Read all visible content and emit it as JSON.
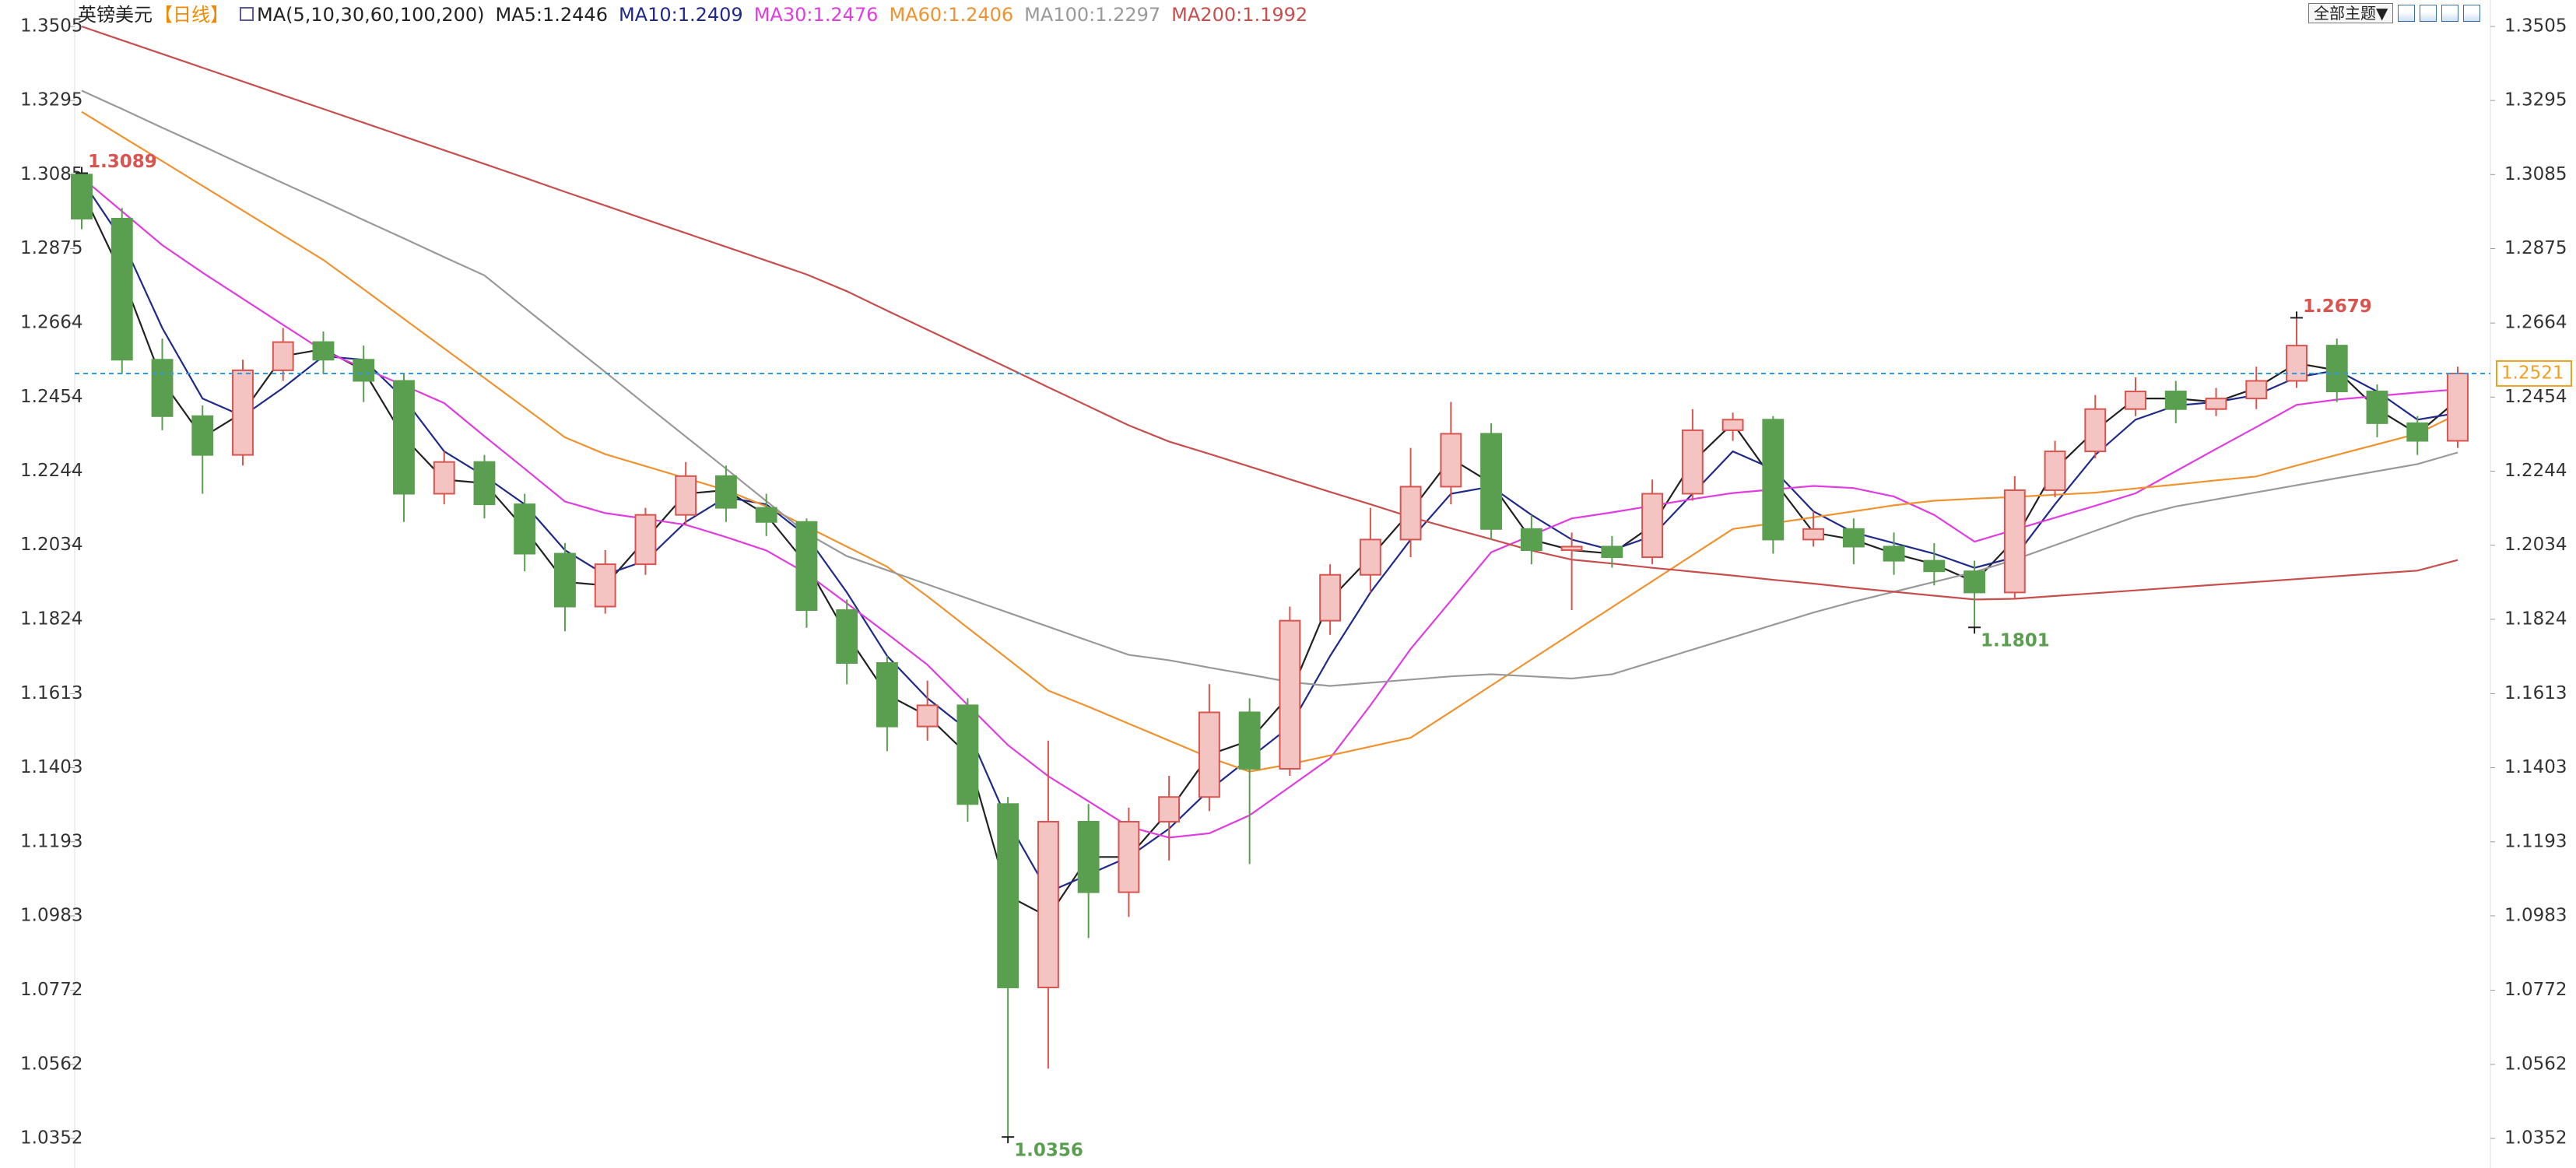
{
  "chart_data": {
    "type": "candlestick",
    "title": "英镑美元",
    "period": "【日线】",
    "ma_label": "MA(5,10,30,60,100,200)",
    "theme_button": "全部主题▼",
    "ylim": [
      1.0268,
      1.358
    ],
    "yticks": [
      1.3505,
      1.3295,
      1.3085,
      1.2875,
      1.2664,
      1.2454,
      1.2244,
      1.2034,
      1.1824,
      1.1613,
      1.1403,
      1.1193,
      1.0983,
      1.0772,
      1.0562,
      1.0352
    ],
    "up_color": "#d9534f",
    "down_color": "#5a9e4f",
    "ohlc": [
      [
        1.3085,
        1.3089,
        1.293,
        1.296
      ],
      [
        1.296,
        1.299,
        1.252,
        1.256
      ],
      [
        1.256,
        1.262,
        1.236,
        1.24
      ],
      [
        1.24,
        1.243,
        1.218,
        1.229
      ],
      [
        1.229,
        1.256,
        1.226,
        1.253
      ],
      [
        1.253,
        1.265,
        1.25,
        1.261
      ],
      [
        1.261,
        1.264,
        1.252,
        1.256
      ],
      [
        1.256,
        1.26,
        1.244,
        1.25
      ],
      [
        1.25,
        1.252,
        1.21,
        1.218
      ],
      [
        1.218,
        1.23,
        1.215,
        1.227
      ],
      [
        1.227,
        1.229,
        1.211,
        1.215
      ],
      [
        1.215,
        1.218,
        1.196,
        1.201
      ],
      [
        1.201,
        1.204,
        1.179,
        1.186
      ],
      [
        1.186,
        1.202,
        1.184,
        1.198
      ],
      [
        1.198,
        1.214,
        1.195,
        1.212
      ],
      [
        1.212,
        1.227,
        1.209,
        1.223
      ],
      [
        1.223,
        1.226,
        1.21,
        1.214
      ],
      [
        1.214,
        1.218,
        1.206,
        1.21
      ],
      [
        1.21,
        1.211,
        1.18,
        1.185
      ],
      [
        1.185,
        1.188,
        1.164,
        1.17
      ],
      [
        1.17,
        1.172,
        1.145,
        1.152
      ],
      [
        1.152,
        1.165,
        1.148,
        1.158
      ],
      [
        1.158,
        1.16,
        1.125,
        1.13
      ],
      [
        1.13,
        1.132,
        1.0356,
        1.078
      ],
      [
        1.078,
        1.148,
        1.055,
        1.125
      ],
      [
        1.125,
        1.13,
        1.092,
        1.105
      ],
      [
        1.105,
        1.129,
        1.098,
        1.125
      ],
      [
        1.125,
        1.138,
        1.114,
        1.132
      ],
      [
        1.132,
        1.164,
        1.128,
        1.156
      ],
      [
        1.156,
        1.16,
        1.113,
        1.14
      ],
      [
        1.14,
        1.186,
        1.138,
        1.182
      ],
      [
        1.182,
        1.198,
        1.178,
        1.195
      ],
      [
        1.195,
        1.214,
        1.19,
        1.205
      ],
      [
        1.205,
        1.231,
        1.2,
        1.22
      ],
      [
        1.22,
        1.244,
        1.215,
        1.235
      ],
      [
        1.235,
        1.238,
        1.205,
        1.208
      ],
      [
        1.208,
        1.212,
        1.198,
        1.202
      ],
      [
        1.202,
        1.207,
        1.185,
        1.203
      ],
      [
        1.203,
        1.206,
        1.197,
        1.2
      ],
      [
        1.2,
        1.222,
        1.198,
        1.218
      ],
      [
        1.218,
        1.242,
        1.216,
        1.236
      ],
      [
        1.236,
        1.241,
        1.233,
        1.239
      ],
      [
        1.239,
        1.24,
        1.201,
        1.205
      ],
      [
        1.205,
        1.213,
        1.203,
        1.208
      ],
      [
        1.208,
        1.211,
        1.198,
        1.203
      ],
      [
        1.203,
        1.207,
        1.195,
        1.199
      ],
      [
        1.199,
        1.204,
        1.192,
        1.196
      ],
      [
        1.196,
        1.199,
        1.1801,
        1.19
      ],
      [
        1.19,
        1.223,
        1.188,
        1.219
      ],
      [
        1.219,
        1.233,
        1.217,
        1.23
      ],
      [
        1.23,
        1.246,
        1.228,
        1.242
      ],
      [
        1.242,
        1.251,
        1.24,
        1.247
      ],
      [
        1.247,
        1.25,
        1.238,
        1.242
      ],
      [
        1.242,
        1.248,
        1.24,
        1.245
      ],
      [
        1.245,
        1.254,
        1.242,
        1.25
      ],
      [
        1.25,
        1.2679,
        1.248,
        1.26
      ],
      [
        1.26,
        1.262,
        1.244,
        1.247
      ],
      [
        1.247,
        1.249,
        1.234,
        1.238
      ],
      [
        1.238,
        1.24,
        1.229,
        1.233
      ],
      [
        1.233,
        1.254,
        1.231,
        1.2521
      ]
    ],
    "series": [
      {
        "name": "MA5:1.2446",
        "color": "#222222",
        "values": [
          1.304,
          1.28,
          1.25,
          1.234,
          1.241,
          1.257,
          1.259,
          1.253,
          1.234,
          1.222,
          1.221,
          1.208,
          1.193,
          1.192,
          1.205,
          1.218,
          1.219,
          1.212,
          1.198,
          1.178,
          1.161,
          1.155,
          1.144,
          1.104,
          1.098,
          1.115,
          1.115,
          1.128,
          1.144,
          1.148,
          1.161,
          1.188,
          1.2,
          1.213,
          1.228,
          1.221,
          1.205,
          1.202,
          1.201,
          1.209,
          1.227,
          1.238,
          1.222,
          1.207,
          1.205,
          1.201,
          1.198,
          1.193,
          1.205,
          1.225,
          1.236,
          1.245,
          1.245,
          1.244,
          1.248,
          1.255,
          1.253,
          1.242,
          1.235,
          1.2446
        ]
      },
      {
        "name": "MA10:1.2409",
        "color": "#1f2a8a",
        "values": [
          1.307,
          1.29,
          1.265,
          1.245,
          1.24,
          1.248,
          1.257,
          1.256,
          1.245,
          1.23,
          1.223,
          1.215,
          1.202,
          1.195,
          1.199,
          1.21,
          1.217,
          1.215,
          1.206,
          1.19,
          1.172,
          1.16,
          1.151,
          1.125,
          1.105,
          1.11,
          1.115,
          1.123,
          1.134,
          1.143,
          1.152,
          1.172,
          1.19,
          1.205,
          1.218,
          1.22,
          1.212,
          1.205,
          1.202,
          1.206,
          1.218,
          1.23,
          1.225,
          1.213,
          1.207,
          1.204,
          1.201,
          1.197,
          1.2,
          1.215,
          1.229,
          1.239,
          1.243,
          1.244,
          1.246,
          1.251,
          1.253,
          1.247,
          1.239,
          1.2409
        ]
      },
      {
        "name": "MA30:1.2476",
        "color": "#e03ce0",
        "values": [
          1.3077,
          1.2981,
          1.2885,
          1.2807,
          1.2733,
          1.2659,
          1.2585,
          1.2536,
          1.2487,
          1.2437,
          1.2343,
          1.2251,
          1.2158,
          1.2125,
          1.2109,
          1.2092,
          1.2057,
          1.2019,
          1.1954,
          1.1869,
          1.1783,
          1.1695,
          1.1581,
          1.1467,
          1.1379,
          1.1308,
          1.1236,
          1.1205,
          1.1217,
          1.1268,
          1.1349,
          1.143,
          1.158,
          1.174,
          1.1877,
          1.2014,
          1.2062,
          1.211,
          1.2127,
          1.2146,
          1.2165,
          1.2182,
          1.2192,
          1.2202,
          1.2196,
          1.2172,
          1.212,
          1.2044,
          1.2078,
          1.2112,
          1.2146,
          1.2181,
          1.2244,
          1.2307,
          1.2369,
          1.2432,
          1.2447,
          1.2457,
          1.2467,
          1.2476
        ]
      },
      {
        "name": "MA60:1.2406",
        "color": "#f0922e",
        "values": [
          1.3263,
          1.3193,
          1.3123,
          1.3053,
          1.2983,
          1.2913,
          1.2843,
          1.276,
          1.2676,
          1.2592,
          1.2508,
          1.2424,
          1.234,
          1.2292,
          1.2258,
          1.2224,
          1.219,
          1.2144,
          1.2087,
          1.203,
          1.1973,
          1.1889,
          1.18,
          1.1711,
          1.1622,
          1.1576,
          1.1528,
          1.148,
          1.1432,
          1.1392,
          1.1413,
          1.1438,
          1.1463,
          1.1488,
          1.1562,
          1.1636,
          1.171,
          1.1784,
          1.1858,
          1.1932,
          1.2006,
          1.208,
          1.2096,
          1.2113,
          1.213,
          1.2147,
          1.216,
          1.2166,
          1.2171,
          1.2177,
          1.2183,
          1.2195,
          1.2206,
          1.2218,
          1.2229,
          1.226,
          1.229,
          1.232,
          1.235,
          1.2406
        ]
      },
      {
        "name": "MA100:1.2297",
        "color": "#999999",
        "values": [
          1.3323,
          1.3271,
          1.3218,
          1.3166,
          1.3113,
          1.3061,
          1.3009,
          1.2956,
          1.2904,
          1.2851,
          1.2799,
          1.2707,
          1.2616,
          1.2525,
          1.2433,
          1.2342,
          1.2251,
          1.2159,
          1.2068,
          1.2003,
          1.1963,
          1.1923,
          1.1883,
          1.1843,
          1.1803,
          1.1763,
          1.1723,
          1.1708,
          1.1687,
          1.1667,
          1.1646,
          1.1635,
          1.1644,
          1.1653,
          1.1662,
          1.1668,
          1.1662,
          1.1656,
          1.1668,
          1.1703,
          1.1738,
          1.1773,
          1.1808,
          1.1843,
          1.1874,
          1.1902,
          1.193,
          1.1958,
          1.1993,
          1.2034,
          1.2075,
          1.2115,
          1.2144,
          1.2164,
          1.2184,
          1.2204,
          1.2224,
          1.2244,
          1.2264,
          1.2297
        ]
      },
      {
        "name": "MA200:1.1992",
        "color": "#c84e4e",
        "values": [
          1.3505,
          1.3466,
          1.3427,
          1.3388,
          1.3349,
          1.331,
          1.3271,
          1.3232,
          1.3193,
          1.3154,
          1.3115,
          1.3076,
          1.3036,
          1.2997,
          1.2958,
          1.2919,
          1.288,
          1.2841,
          1.2802,
          1.2754,
          1.2699,
          1.2645,
          1.2591,
          1.2537,
          1.2482,
          1.2428,
          1.2374,
          1.2328,
          1.2293,
          1.2257,
          1.2221,
          1.2185,
          1.215,
          1.2114,
          1.2082,
          1.2051,
          1.2019,
          1.1993,
          1.1982,
          1.197,
          1.1959,
          1.1948,
          1.1936,
          1.1925,
          1.1913,
          1.1902,
          1.1891,
          1.188,
          1.1882,
          1.189,
          1.1898,
          1.1906,
          1.1914,
          1.1922,
          1.193,
          1.1938,
          1.1946,
          1.1954,
          1.1962,
          1.1992
        ]
      }
    ],
    "extremes": [
      {
        "value": 1.3089,
        "side": "high"
      },
      {
        "value": 1.0356,
        "side": "low"
      },
      {
        "value": 1.1801,
        "side": "low"
      },
      {
        "value": 1.2679,
        "side": "high"
      }
    ],
    "last_price": 1.2521,
    "last_price_color": "#f0a020",
    "last_line_color": "#3399dd"
  }
}
